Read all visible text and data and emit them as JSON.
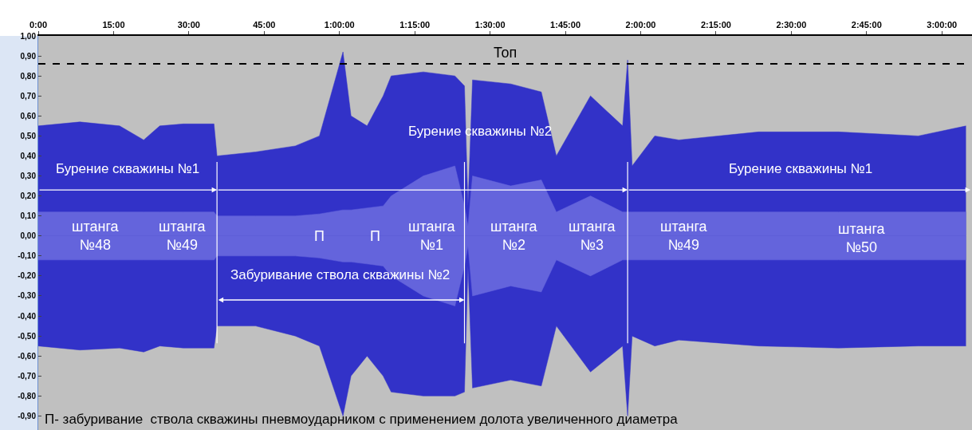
{
  "chart_data": {
    "type": "area",
    "x": [
      0,
      8.3,
      16.2,
      21,
      24.2,
      28.9,
      35,
      35.6,
      43.3,
      51.2,
      56,
      60.7,
      62.3,
      65.5,
      68.7,
      70.3,
      76.7,
      83,
      84.9,
      85.6,
      86.5,
      94.1,
      100.2,
      103.2,
      110,
      116.4,
      117.4,
      118.3,
      122.8,
      127.6,
      143.5,
      159.4,
      175.3,
      184.8
    ],
    "series": [
      {
        "color": "#3232c8",
        "values": [
          0.55,
          0.57,
          0.55,
          0.48,
          0.55,
          0.56,
          0.56,
          0.4,
          0.42,
          0.45,
          0.5,
          0.92,
          0.6,
          0.55,
          0.7,
          0.8,
          0.82,
          0.8,
          0.75,
          0.15,
          0.78,
          0.76,
          0.72,
          0.4,
          0.7,
          0.55,
          0.88,
          0.35,
          0.5,
          0.48,
          0.52,
          0.52,
          0.5,
          0.55
        ]
      },
      {
        "color": "#3232c8",
        "values": [
          -0.55,
          -0.57,
          -0.56,
          -0.58,
          -0.55,
          -0.56,
          -0.56,
          -0.45,
          -0.45,
          -0.5,
          -0.55,
          -0.9,
          -0.7,
          -0.6,
          -0.7,
          -0.78,
          -0.8,
          -0.8,
          -0.78,
          -0.15,
          -0.76,
          -0.72,
          -0.75,
          -0.45,
          -0.68,
          -0.55,
          -0.9,
          -0.5,
          -0.55,
          -0.52,
          -0.55,
          -0.56,
          -0.55,
          -0.55
        ]
      },
      {
        "color": "#6464dc",
        "values": [
          0.12,
          0.12,
          0.12,
          0.12,
          0.12,
          0.12,
          0.12,
          0.1,
          0.1,
          0.1,
          0.11,
          0.13,
          0.13,
          0.14,
          0.15,
          0.2,
          0.3,
          0.35,
          0.15,
          0.05,
          0.3,
          0.25,
          0.28,
          0.12,
          0.2,
          0.12,
          0.12,
          0.12,
          0.12,
          0.12,
          0.12,
          0.12,
          0.12,
          0.12
        ]
      },
      {
        "color": "#6464dc",
        "values": [
          -0.12,
          -0.12,
          -0.12,
          -0.12,
          -0.12,
          -0.12,
          -0.12,
          -0.1,
          -0.1,
          -0.1,
          -0.11,
          -0.13,
          -0.13,
          -0.14,
          -0.15,
          -0.2,
          -0.3,
          -0.35,
          -0.15,
          -0.05,
          -0.3,
          -0.25,
          -0.28,
          -0.12,
          -0.2,
          -0.12,
          -0.12,
          -0.12,
          -0.12,
          -0.12,
          -0.12,
          -0.12,
          -0.12,
          -0.12
        ]
      }
    ],
    "xlim": [
      0,
      186
    ],
    "xticks": [
      {
        "value": 0,
        "label": "0:00"
      },
      {
        "value": 15,
        "label": "15:00"
      },
      {
        "value": 30,
        "label": "30:00"
      },
      {
        "value": 45,
        "label": "45:00"
      },
      {
        "value": 60,
        "label": "1:00:00"
      },
      {
        "value": 75,
        "label": "1:15:00"
      },
      {
        "value": 90,
        "label": "1:30:00"
      },
      {
        "value": 105,
        "label": "1:45:00"
      },
      {
        "value": 120,
        "label": "2:00:00"
      },
      {
        "value": 135,
        "label": "2:15:00"
      },
      {
        "value": 150,
        "label": "2:30:00"
      },
      {
        "value": 165,
        "label": "2:45:00"
      },
      {
        "value": 180,
        "label": "3:00:00"
      }
    ],
    "ylim": [
      -0.97,
      1.0
    ],
    "yticks": [
      {
        "value": 1,
        "label": "1,00"
      },
      {
        "value": 0.9,
        "label": "0,90"
      },
      {
        "value": 0.8,
        "label": "0,80"
      },
      {
        "value": 0.7,
        "label": "0,70"
      },
      {
        "value": 0.6,
        "label": "0,60"
      },
      {
        "value": 0.5,
        "label": "0,50"
      },
      {
        "value": 0.4,
        "label": "0,40"
      },
      {
        "value": 0.3,
        "label": "0,30"
      },
      {
        "value": 0.2,
        "label": "0,20"
      },
      {
        "value": 0.1,
        "label": "0,10"
      },
      {
        "value": 0,
        "label": "0,00"
      },
      {
        "value": -0.1,
        "label": "-0,10"
      },
      {
        "value": -0.2,
        "label": "-0,20"
      },
      {
        "value": -0.3,
        "label": "-0,30"
      },
      {
        "value": -0.4,
        "label": "-0,40"
      },
      {
        "value": -0.5,
        "label": "-0,50"
      },
      {
        "value": -0.6,
        "label": "-0,60"
      },
      {
        "value": -0.7,
        "label": "-0,70"
      },
      {
        "value": -0.8,
        "label": "-0,80"
      },
      {
        "value": -0.9,
        "label": "-0,90"
      }
    ],
    "ref_lines": [
      {
        "axis": "y",
        "value": 0.86,
        "label": "Топ",
        "color": "#000000",
        "line_style": "dashed"
      },
      {
        "axis": "x",
        "value": 35.6,
        "color": "#ffffff",
        "line_style": "solid"
      },
      {
        "axis": "x",
        "value": 84.9,
        "color": "#ffffff",
        "line_style": "solid"
      },
      {
        "axis": "x",
        "value": 117.4,
        "color": "#ffffff",
        "line_style": "solid"
      }
    ],
    "annotations": [
      "Бурение скважины №1",
      "Бурение скважины №2",
      "Бурение скважины №1",
      "Забуривание ствола скважины №2",
      {
        "text": "штанга\n№48",
        "x": 11.4,
        "y": 0.0
      },
      {
        "text": "штанга\n№49",
        "x": 28.8,
        "y": 0.0
      },
      {
        "text": "П",
        "x": 56,
        "y": 0.0
      },
      {
        "text": "П",
        "x": 67.1,
        "y": 0.0
      },
      {
        "text": "штанга\n№1",
        "x": 78.4,
        "y": 0.0
      },
      {
        "text": "штанга\n№2",
        "x": 94.9,
        "y": 0.0
      },
      {
        "text": "штанга\n№3",
        "x": 110.4,
        "y": 0.0
      },
      {
        "text": "штанга\n№49",
        "x": 128.6,
        "y": 0.0
      },
      {
        "text": "штанга\n№50",
        "x": 164.1,
        "y": -0.01
      },
      "П- забуривание  ствола скважины пневмоударником с применением долота увеличенного диаметра"
    ],
    "grid": false
  }
}
